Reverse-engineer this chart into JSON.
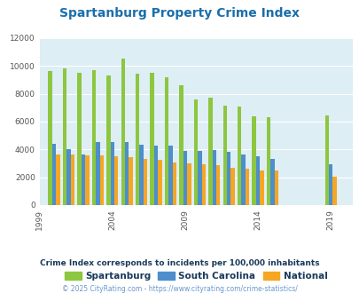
{
  "title": "Spartanburg Property Crime Index",
  "title_color": "#1a6faa",
  "subtitle": "Crime Index corresponds to incidents per 100,000 inhabitants",
  "footer": "© 2025 CityRating.com - https://www.cityrating.com/crime-statistics/",
  "years": [
    2000,
    2001,
    2002,
    2003,
    2004,
    2005,
    2006,
    2007,
    2008,
    2009,
    2010,
    2011,
    2012,
    2013,
    2014,
    2015,
    2019
  ],
  "spartanburg": [
    9650,
    9800,
    9480,
    9700,
    9320,
    10520,
    9470,
    9530,
    9180,
    8620,
    7620,
    7730,
    7170,
    7100,
    6390,
    6330,
    6470
  ],
  "south_carolina": [
    4380,
    4030,
    3620,
    4520,
    4550,
    4560,
    4360,
    4250,
    4270,
    3900,
    3890,
    3980,
    3820,
    3640,
    3490,
    3290,
    2950
  ],
  "national": [
    3620,
    3620,
    3590,
    3590,
    3510,
    3450,
    3340,
    3280,
    3050,
    2980,
    2950,
    2860,
    2650,
    2600,
    2490,
    2490,
    2070
  ],
  "spartanburg_color": "#8dc63f",
  "south_carolina_color": "#4d8ecc",
  "national_color": "#f5a623",
  "plot_bg_color": "#ddeef5",
  "ylim": [
    0,
    12000
  ],
  "yticks": [
    0,
    2000,
    4000,
    6000,
    8000,
    10000,
    12000
  ],
  "bar_width": 0.27,
  "legend_labels": [
    "Spartanburg",
    "South Carolina",
    "National"
  ],
  "subtitle_color": "#1a3a5c",
  "footer_color": "#6699cc"
}
